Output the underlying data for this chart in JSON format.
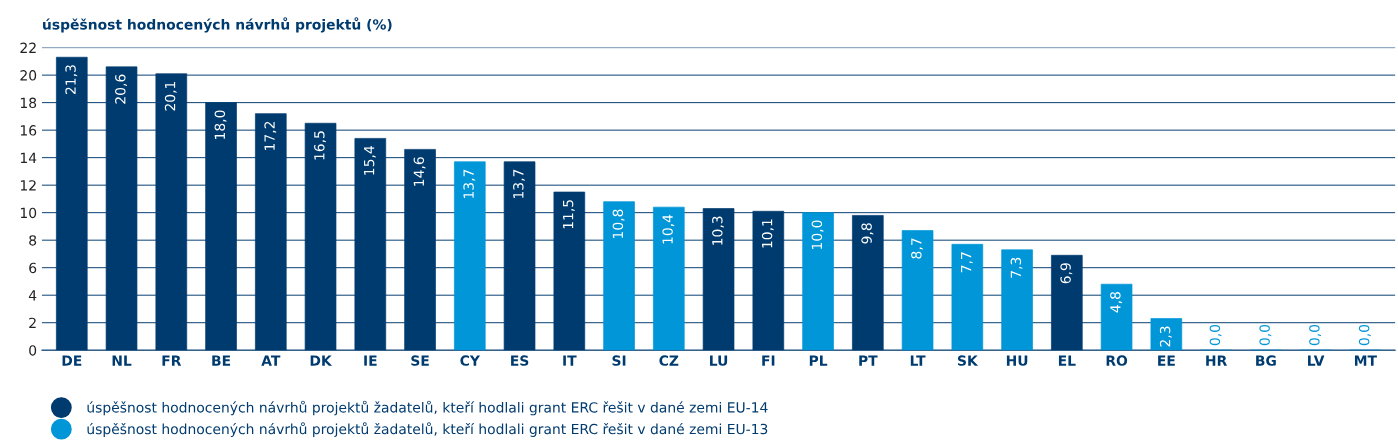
{
  "chart_data": {
    "type": "bar",
    "title": "úspěšnost hodnocených návrhů projektů (%)",
    "categories": [
      "DE",
      "NL",
      "FR",
      "BE",
      "AT",
      "DK",
      "IE",
      "SE",
      "CY",
      "ES",
      "IT",
      "SI",
      "CZ",
      "LU",
      "FI",
      "PL",
      "PT",
      "LT",
      "SK",
      "HU",
      "EL",
      "RO",
      "EE",
      "HR",
      "BG",
      "LV",
      "MT"
    ],
    "stacked": true,
    "series": [
      {
        "name": "úspěšnost hodnocených návrhů projektů žadatelů, kteří hodlali grant ERC řešit v dané zemi EU-14",
        "color": "#003b6f",
        "values": [
          21.3,
          20.6,
          20.1,
          18.0,
          17.2,
          16.5,
          15.4,
          14.6,
          null,
          13.7,
          11.5,
          null,
          null,
          10.3,
          10.1,
          null,
          9.8,
          null,
          null,
          null,
          6.9,
          null,
          null,
          null,
          null,
          null,
          null
        ],
        "value_labels": [
          "21,3",
          "20,6",
          "20,1",
          "18,0",
          "17,2",
          "16,5",
          "15,4",
          "14,6",
          null,
          "13,7",
          "11,5",
          null,
          null,
          "10,3",
          "10,1",
          null,
          "9,8",
          null,
          null,
          null,
          "6,9",
          null,
          null,
          null,
          null,
          null,
          null
        ]
      },
      {
        "name": "úspěšnost hodnocených návrhů projektů žadatelů, kteří hodlali grant ERC řešit v dané zemi EU-13",
        "color": "#0096d8",
        "values": [
          null,
          null,
          null,
          null,
          null,
          null,
          null,
          null,
          13.7,
          null,
          null,
          10.8,
          10.4,
          null,
          null,
          10.0,
          null,
          8.7,
          7.7,
          7.3,
          null,
          4.8,
          2.3,
          0.0,
          0.0,
          0.0,
          0.0
        ],
        "value_labels": [
          null,
          null,
          null,
          null,
          null,
          null,
          null,
          null,
          "13,7",
          null,
          null,
          "10,8",
          "10,4",
          null,
          null,
          "10,0",
          null,
          "8,7",
          "7,7",
          "7,3",
          null,
          "4,8",
          "2,3",
          "0,0",
          "0,0",
          "0,0",
          "0,0"
        ]
      }
    ],
    "ylim": [
      0,
      22
    ],
    "yticks": [
      0,
      2,
      4,
      6,
      8,
      10,
      12,
      14,
      16,
      18,
      20,
      22
    ],
    "grid": "y",
    "legend": "bottom left"
  }
}
